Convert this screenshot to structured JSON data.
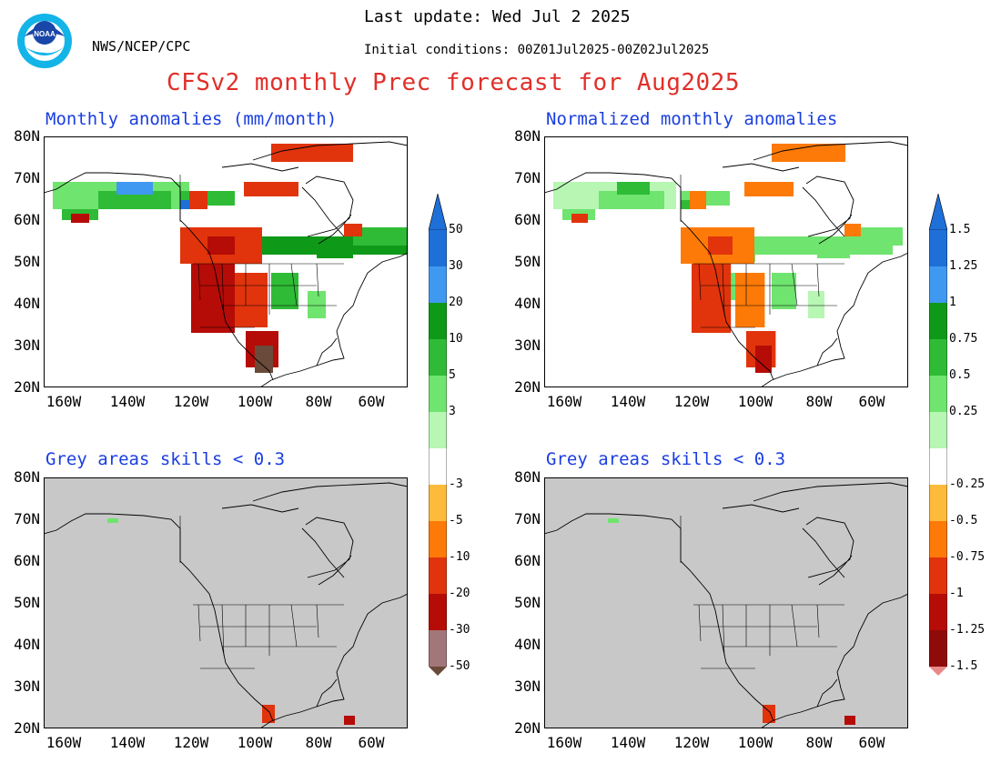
{
  "header": {
    "org": "NWS/NCEP/CPC",
    "last_update": "Last update: Wed Jul 2 2025",
    "initial_conditions": "Initial conditions: 00Z01Jul2025-00Z02Jul2025",
    "title": "CFSv2 monthly Prec forecast for Aug2025",
    "logo_text": "NOAA"
  },
  "panels": {
    "top_left": {
      "title": "Monthly anomalies (mm/month)"
    },
    "top_right": {
      "title": "Normalized monthly anomalies"
    },
    "bottom_left": {
      "title": "Grey areas skills < 0.3"
    },
    "bottom_right": {
      "title": "Grey areas skills < 0.3"
    }
  },
  "axes": {
    "lat_labels": [
      "80N",
      "70N",
      "60N",
      "50N",
      "40N",
      "30N",
      "20N"
    ],
    "lon_labels": [
      "160W",
      "140W",
      "120W",
      "100W",
      "80W",
      "60W"
    ]
  },
  "colorbar_left": {
    "labels": [
      "50",
      "30",
      "20",
      "10",
      "5",
      "3",
      "-3",
      "-5",
      "-10",
      "-20",
      "-30",
      "-50"
    ]
  },
  "colorbar_right": {
    "labels": [
      "1.5",
      "1.25",
      "1",
      "0.75",
      "0.5",
      "0.25",
      "-0.25",
      "-0.5",
      "-0.75",
      "-1",
      "-1.25",
      "-1.5"
    ]
  },
  "colors": {
    "wet": [
      "#1f6fd8",
      "#3f99f0",
      "#0e9a18",
      "#2fbb36",
      "#6fe46f",
      "#b7f6b3"
    ],
    "dry": [
      "#fdbb3c",
      "#fd7a09",
      "#e1340c",
      "#b50c07",
      "#a2777a",
      "#6a4a3a"
    ],
    "dry_right": [
      "#fdbb3c",
      "#fd7a09",
      "#e1340c",
      "#b50c07",
      "#8f0b0a",
      "#e88888"
    ],
    "title_red": "#e0302a",
    "title_blue": "#1a3ee0",
    "grey_mask": "#c8c8c8"
  }
}
